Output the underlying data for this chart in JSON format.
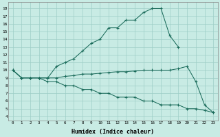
{
  "title": "",
  "xlabel": "Humidex (Indice chaleur)",
  "xlim": [
    -0.5,
    23.5
  ],
  "ylim": [
    3.5,
    18.8
  ],
  "yticks": [
    4,
    5,
    6,
    7,
    8,
    9,
    10,
    11,
    12,
    13,
    14,
    15,
    16,
    17,
    18
  ],
  "xticks": [
    0,
    1,
    2,
    3,
    4,
    5,
    6,
    7,
    8,
    9,
    10,
    11,
    12,
    13,
    14,
    15,
    16,
    17,
    18,
    19,
    20,
    21,
    22,
    23
  ],
  "bg_color": "#c8ebe4",
  "grid_color": "#9dcec6",
  "line_color": "#1a6b5a",
  "lines": [
    {
      "x": [
        0,
        1,
        2,
        3,
        4,
        5,
        6,
        7,
        8,
        9,
        10,
        11,
        12,
        13,
        14,
        15,
        16,
        17,
        18,
        19,
        20,
        21,
        22,
        23
      ],
      "y": [
        10.0,
        9.0,
        9.0,
        9.0,
        8.5,
        8.5,
        8.0,
        8.0,
        7.5,
        7.5,
        7.0,
        7.0,
        6.5,
        6.5,
        6.5,
        6.0,
        6.0,
        5.5,
        5.5,
        5.5,
        5.0,
        5.0,
        4.8,
        4.5
      ]
    },
    {
      "x": [
        0,
        1,
        2,
        3,
        4,
        5,
        6,
        7,
        8,
        9,
        10,
        11,
        12,
        13,
        14,
        15,
        16,
        17,
        18,
        19,
        20,
        21,
        22,
        23
      ],
      "y": [
        10.0,
        9.0,
        9.0,
        9.0,
        9.0,
        9.0,
        9.2,
        9.3,
        9.5,
        9.5,
        9.6,
        9.7,
        9.8,
        9.8,
        9.9,
        10.0,
        10.0,
        10.0,
        10.0,
        10.2,
        10.5,
        8.5,
        5.5,
        4.5
      ]
    },
    {
      "x": [
        0,
        1,
        2,
        3,
        4,
        5,
        6,
        7,
        8,
        9,
        10,
        11,
        12,
        13,
        14,
        15,
        16,
        17,
        18,
        19,
        20,
        21,
        22,
        23
      ],
      "y": [
        10.0,
        9.0,
        9.0,
        9.0,
        9.0,
        10.5,
        11.0,
        11.5,
        12.5,
        13.5,
        14.0,
        15.5,
        15.5,
        16.5,
        16.5,
        17.5,
        18.0,
        18.0,
        14.5,
        13.0,
        null,
        null,
        null,
        null
      ]
    }
  ]
}
